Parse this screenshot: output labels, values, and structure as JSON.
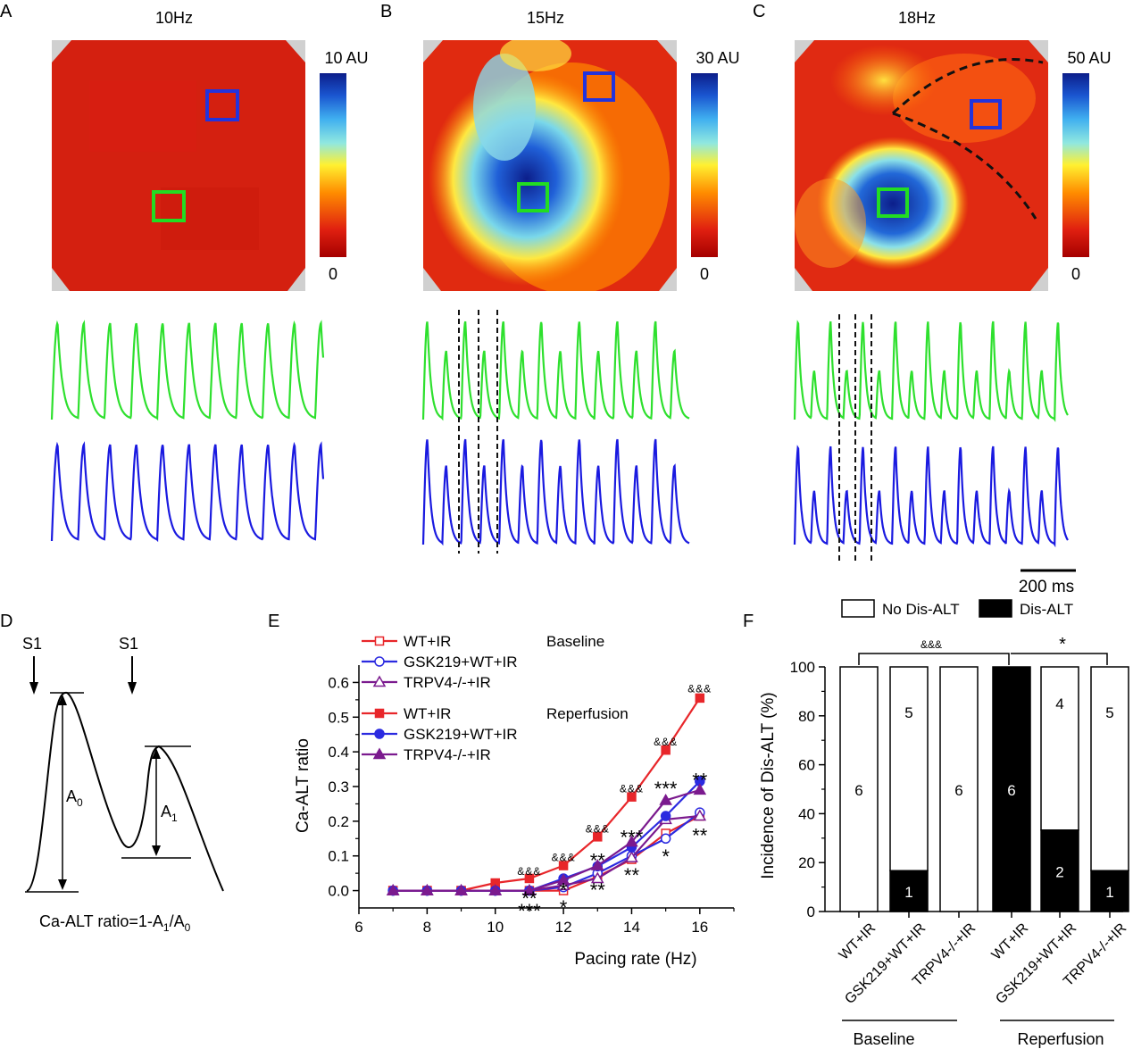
{
  "panels": {
    "A": {
      "letter": "A",
      "freq": "10Hz",
      "scale_max": "10 AU",
      "scale_min": "0"
    },
    "B": {
      "letter": "B",
      "freq": "15Hz",
      "scale_max": "30 AU",
      "scale_min": "0"
    },
    "C": {
      "letter": "C",
      "freq": "18Hz",
      "scale_max": "50 AU",
      "scale_min": "0"
    }
  },
  "scalebar": "200 ms",
  "panel_d": {
    "letter": "D",
    "s1": "S1",
    "a0": "A",
    "a0_sub": "0",
    "a1": "A",
    "a1_sub": "1",
    "formula_a": "Ca-ALT ratio=1-A",
    "formula_b": "/A",
    "formula_sub1": "1",
    "formula_sub2": "0"
  },
  "panel_e": {
    "letter": "E",
    "group_baseline": "Baseline",
    "group_reperfusion": "Reperfusion"
  },
  "panel_f": {
    "letter": "F",
    "legend_no": "No Dis-ALT",
    "legend_yes": "Dis-ALT",
    "sig_left": "&&&",
    "sig_right": "*",
    "group_baseline": "Baseline",
    "group_reperfusion": "Reperfusion"
  },
  "chart_data": [
    {
      "type": "line",
      "xlabel": "Pacing rate (Hz)",
      "ylabel": "Ca-ALT ratio",
      "xlim": [
        6,
        17
      ],
      "ylim": [
        -0.05,
        0.65
      ],
      "xticks": [
        6,
        8,
        10,
        12,
        14,
        16
      ],
      "yticks": [
        0.0,
        0.1,
        0.2,
        0.3,
        0.4,
        0.5,
        0.6
      ],
      "x": [
        7,
        8,
        9,
        10,
        11,
        12,
        13,
        14,
        15,
        16
      ],
      "series": [
        {
          "name": "WT+IR",
          "group": "Baseline",
          "color": "#e8262a",
          "marker": "square-open",
          "values": [
            0,
            0,
            0,
            0,
            0,
            0.0,
            0.04,
            0.09,
            0.165,
            0.215
          ]
        },
        {
          "name": "GSK219+WT+IR",
          "group": "Baseline",
          "color": "#2b2ae0",
          "marker": "circle-open",
          "values": [
            0,
            0,
            0,
            0,
            0,
            0.01,
            0.05,
            0.1,
            0.15,
            0.225
          ]
        },
        {
          "name": "TRPV4-/-+IR",
          "group": "Baseline",
          "color": "#7b1a8e",
          "marker": "triangle-open",
          "values": [
            0,
            0,
            0,
            0,
            0,
            0.015,
            0.035,
            0.095,
            0.205,
            0.215
          ]
        },
        {
          "name": "WT+IR",
          "group": "Reperfusion",
          "color": "#e8262a",
          "marker": "square",
          "values": [
            0,
            0,
            0,
            0.022,
            0.035,
            0.072,
            0.155,
            0.27,
            0.405,
            0.555
          ]
        },
        {
          "name": "GSK219+WT+IR",
          "group": "Reperfusion",
          "color": "#2b2ae0",
          "marker": "circle",
          "values": [
            0,
            0,
            0,
            0,
            0.0,
            0.035,
            0.07,
            0.125,
            0.215,
            0.315
          ]
        },
        {
          "name": "TRPV4-/-+IR",
          "group": "Reperfusion",
          "color": "#7b1a8e",
          "marker": "triangle",
          "values": [
            0,
            0,
            0,
            0,
            0.0,
            0.03,
            0.072,
            0.14,
            0.26,
            0.29
          ]
        }
      ],
      "annotations": [
        {
          "x": 11,
          "y": 0.045,
          "text": "&&&",
          "kind": "amp"
        },
        {
          "x": 12,
          "y": 0.085,
          "text": "&&&",
          "kind": "amp"
        },
        {
          "x": 13,
          "y": 0.168,
          "text": "&&&",
          "kind": "amp"
        },
        {
          "x": 14,
          "y": 0.283,
          "text": "&&&",
          "kind": "amp"
        },
        {
          "x": 15,
          "y": 0.418,
          "text": "&&&",
          "kind": "amp"
        },
        {
          "x": 16,
          "y": 0.572,
          "text": "&&&",
          "kind": "amp"
        },
        {
          "x": 11,
          "y": -0.012,
          "text": "**",
          "kind": "star"
        },
        {
          "x": 11,
          "y": -0.048,
          "text": "***",
          "kind": "star"
        },
        {
          "x": 12,
          "y": 0.013,
          "text": "*",
          "kind": "star"
        },
        {
          "x": 12,
          "y": -0.037,
          "text": "*",
          "kind": "star"
        },
        {
          "x": 13,
          "y": 0.098,
          "text": "**",
          "kind": "star"
        },
        {
          "x": 13,
          "y": 0.013,
          "text": "**",
          "kind": "star"
        },
        {
          "x": 14,
          "y": 0.165,
          "text": "***",
          "kind": "star"
        },
        {
          "x": 14,
          "y": 0.055,
          "text": "**",
          "kind": "star"
        },
        {
          "x": 15,
          "y": 0.305,
          "text": "***",
          "kind": "star"
        },
        {
          "x": 15,
          "y": 0.11,
          "text": "*",
          "kind": "star"
        },
        {
          "x": 16,
          "y": 0.33,
          "text": "**",
          "kind": "star"
        },
        {
          "x": 16,
          "y": 0.17,
          "text": "**",
          "kind": "star"
        }
      ]
    },
    {
      "type": "bar",
      "stacked": true,
      "ylabel": "Incidence of Dis-ALT  (%)",
      "ylim": [
        0,
        100
      ],
      "yticks": [
        0,
        20,
        40,
        60,
        80,
        100
      ],
      "categories": [
        "WT+IR",
        "GSK219+WT+IR",
        "TRPV4-/-+IR",
        "WT+IR",
        "GSK219+WT+IR",
        "TRPV4-/-+IR"
      ],
      "groups": [
        "Baseline",
        "Baseline",
        "Baseline",
        "Reperfusion",
        "Reperfusion",
        "Reperfusion"
      ],
      "series": [
        {
          "name": "Dis-ALT",
          "color": "#000000",
          "values": [
            0,
            16.7,
            0,
            100,
            33.3,
            16.7
          ],
          "counts": [
            "",
            "1",
            "",
            "6",
            "2",
            "1"
          ]
        },
        {
          "name": "No Dis-ALT",
          "color": "#ffffff",
          "values": [
            100,
            83.3,
            100,
            0,
            66.7,
            83.3
          ],
          "counts": [
            "6",
            "5",
            "6",
            "",
            "4",
            "5"
          ]
        }
      ]
    }
  ]
}
